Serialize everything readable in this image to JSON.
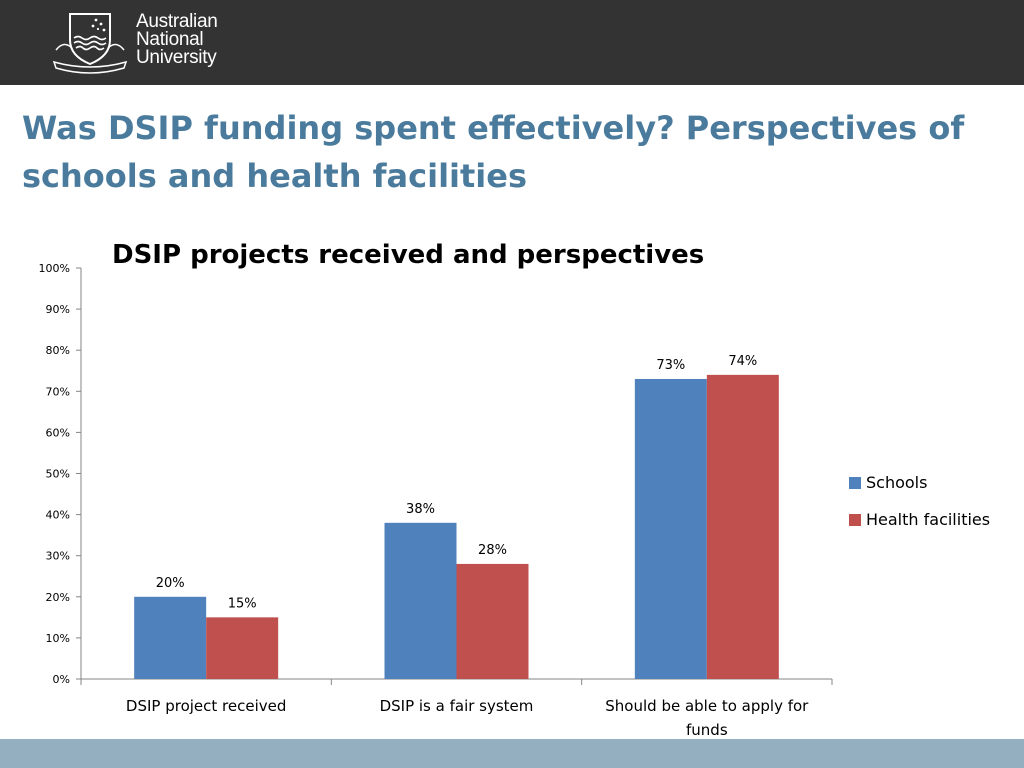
{
  "header": {
    "logo_lines": [
      "Australian",
      "National",
      "University"
    ]
  },
  "slide": {
    "title": "Was DSIP funding spent effectively? Perspectives of schools and health facilities"
  },
  "colors": {
    "header_bg": "#333333",
    "footer_bg": "#93afc0",
    "title": "#4a7b9d",
    "schools": "#4f81bd",
    "health": "#c0504d"
  },
  "chart_data": {
    "type": "bar",
    "title": "DSIP projects received and perspectives",
    "categories": [
      [
        "DSIP project received"
      ],
      [
        "DSIP is a fair system"
      ],
      [
        "Should be able to apply for",
        "funds"
      ]
    ],
    "series": [
      {
        "name": "Schools",
        "values": [
          20,
          38,
          73
        ],
        "labels": [
          "20%",
          "38%",
          "73%"
        ],
        "color": "#4f81bd"
      },
      {
        "name": "Health facilities",
        "values": [
          15,
          28,
          74
        ],
        "labels": [
          "15%",
          "28%",
          "74%"
        ],
        "color": "#c0504d"
      }
    ],
    "ylim": [
      0,
      100
    ],
    "yticks": [
      "0%",
      "10%",
      "20%",
      "30%",
      "40%",
      "50%",
      "60%",
      "70%",
      "80%",
      "90%",
      "100%"
    ],
    "grid": false,
    "legend": "right"
  }
}
